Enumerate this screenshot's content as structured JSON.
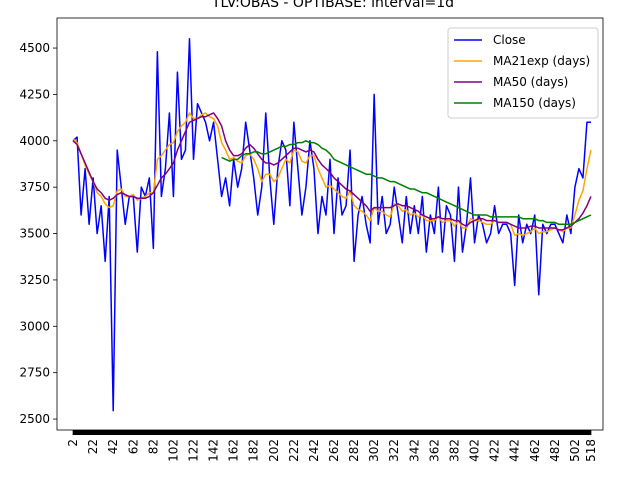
{
  "chart_data": {
    "type": "line",
    "title": "TLV:OBAS - OPTIBASE: interval=1d",
    "x": [
      2,
      6,
      10,
      14,
      18,
      22,
      26,
      30,
      34,
      38,
      42,
      46,
      50,
      54,
      58,
      62,
      66,
      70,
      74,
      78,
      82,
      86,
      90,
      94,
      98,
      102,
      106,
      110,
      114,
      118,
      122,
      126,
      130,
      134,
      138,
      142,
      146,
      150,
      154,
      158,
      162,
      166,
      170,
      174,
      178,
      182,
      186,
      190,
      194,
      198,
      202,
      206,
      210,
      214,
      218,
      222,
      226,
      230,
      234,
      238,
      242,
      246,
      250,
      254,
      258,
      262,
      266,
      270,
      274,
      278,
      282,
      286,
      290,
      294,
      298,
      302,
      306,
      310,
      314,
      318,
      322,
      326,
      330,
      334,
      338,
      342,
      346,
      350,
      354,
      358,
      362,
      366,
      370,
      374,
      378,
      382,
      386,
      390,
      394,
      398,
      402,
      406,
      410,
      414,
      418,
      422,
      426,
      430,
      434,
      438,
      442,
      446,
      450,
      454,
      458,
      462,
      466,
      470,
      474,
      478,
      482,
      486,
      490,
      494,
      498,
      502,
      506,
      510,
      514,
      518
    ],
    "series": [
      {
        "name": "Close",
        "color": "#0000ff",
        "values": [
          4000,
          4020,
          3600,
          3850,
          3550,
          3800,
          3500,
          3650,
          3350,
          3700,
          2545,
          3950,
          3750,
          3550,
          3700,
          3700,
          3400,
          3750,
          3700,
          3800,
          3420,
          4480,
          3700,
          3850,
          4150,
          3700,
          4370,
          3900,
          3950,
          4550,
          3900,
          4200,
          4150,
          4100,
          4000,
          4100,
          3900,
          3700,
          3800,
          3650,
          3900,
          3750,
          3850,
          4100,
          3950,
          3800,
          3600,
          3750,
          4150,
          3800,
          3550,
          3850,
          4000,
          3950,
          3650,
          4100,
          3850,
          3600,
          3750,
          4000,
          3850,
          3500,
          3700,
          3600,
          3900,
          3500,
          3800,
          3600,
          3650,
          3950,
          3350,
          3600,
          3700,
          3550,
          3450,
          4250,
          3550,
          3700,
          3500,
          3550,
          3750,
          3600,
          3450,
          3700,
          3500,
          3650,
          3500,
          3700,
          3400,
          3600,
          3500,
          3750,
          3400,
          3650,
          3600,
          3350,
          3750,
          3400,
          3550,
          3800,
          3450,
          3600,
          3550,
          3450,
          3500,
          3650,
          3500,
          3550,
          3550,
          3500,
          3220,
          3600,
          3450,
          3550,
          3500,
          3600,
          3170,
          3550,
          3500,
          3550,
          3550,
          3500,
          3450,
          3600,
          3500,
          3750,
          3850,
          3800,
          4100,
          4100
        ]
      },
      {
        "name": "MA21exp (days)",
        "color": "#ffa500",
        "values": [
          4010,
          3990,
          3930,
          3870,
          3820,
          3780,
          3720,
          3700,
          3660,
          3640,
          3650,
          3730,
          3740,
          3700,
          3700,
          3710,
          3680,
          3690,
          3700,
          3720,
          3720,
          3900,
          3920,
          3950,
          3980,
          3990,
          4050,
          4080,
          4100,
          4150,
          4120,
          4120,
          4140,
          4150,
          4130,
          4120,
          4080,
          3990,
          3950,
          3900,
          3910,
          3890,
          3880,
          3920,
          3930,
          3900,
          3850,
          3780,
          3820,
          3820,
          3780,
          3800,
          3850,
          3900,
          3880,
          3950,
          3940,
          3890,
          3880,
          3920,
          3920,
          3850,
          3800,
          3750,
          3760,
          3740,
          3720,
          3700,
          3690,
          3730,
          3650,
          3630,
          3620,
          3600,
          3570,
          3640,
          3620,
          3620,
          3600,
          3590,
          3660,
          3650,
          3620,
          3630,
          3600,
          3610,
          3590,
          3600,
          3570,
          3570,
          3570,
          3590,
          3560,
          3570,
          3570,
          3540,
          3570,
          3530,
          3530,
          3580,
          3570,
          3570,
          3560,
          3550,
          3550,
          3570,
          3560,
          3560,
          3560,
          3550,
          3490,
          3500,
          3490,
          3500,
          3510,
          3530,
          3500,
          3510,
          3510,
          3520,
          3530,
          3520,
          3510,
          3530,
          3530,
          3600,
          3680,
          3730,
          3850,
          3950
        ]
      },
      {
        "name": "MA50 (days)",
        "color": "#800080",
        "values": [
          4000,
          3980,
          3930,
          3880,
          3830,
          3780,
          3740,
          3720,
          3690,
          3680,
          3690,
          3710,
          3720,
          3710,
          3700,
          3700,
          3690,
          3690,
          3690,
          3700,
          3720,
          3760,
          3800,
          3820,
          3850,
          3880,
          3950,
          4000,
          4050,
          4100,
          4110,
          4120,
          4130,
          4130,
          4140,
          4150,
          4120,
          4080,
          4000,
          3950,
          3920,
          3920,
          3930,
          3960,
          3980,
          3960,
          3930,
          3900,
          3880,
          3880,
          3870,
          3880,
          3900,
          3920,
          3940,
          3960,
          3960,
          3950,
          3940,
          3950,
          3940,
          3900,
          3870,
          3850,
          3830,
          3800,
          3780,
          3760,
          3740,
          3730,
          3710,
          3690,
          3670,
          3650,
          3620,
          3640,
          3640,
          3640,
          3640,
          3640,
          3650,
          3660,
          3650,
          3650,
          3640,
          3630,
          3620,
          3600,
          3590,
          3580,
          3580,
          3590,
          3580,
          3580,
          3580,
          3570,
          3570,
          3550,
          3540,
          3560,
          3570,
          3580,
          3580,
          3570,
          3570,
          3570,
          3560,
          3560,
          3560,
          3550,
          3540,
          3530,
          3530,
          3530,
          3540,
          3540,
          3530,
          3530,
          3530,
          3530,
          3530,
          3520,
          3520,
          3530,
          3540,
          3560,
          3580,
          3610,
          3650,
          3700
        ]
      },
      {
        "name": "MA150 (days)",
        "color": "#008000",
        "values": [
          null,
          null,
          null,
          null,
          null,
          null,
          null,
          null,
          null,
          null,
          null,
          null,
          null,
          null,
          null,
          null,
          null,
          null,
          null,
          null,
          null,
          null,
          null,
          null,
          null,
          null,
          null,
          null,
          null,
          null,
          null,
          null,
          null,
          null,
          null,
          null,
          null,
          3910,
          3900,
          3890,
          3900,
          3900,
          3920,
          3930,
          3930,
          3940,
          3940,
          3930,
          3930,
          3940,
          3950,
          3960,
          3970,
          3970,
          3980,
          3980,
          3990,
          3990,
          4000,
          3990,
          3990,
          3980,
          3960,
          3950,
          3930,
          3900,
          3890,
          3880,
          3870,
          3860,
          3850,
          3840,
          3830,
          3820,
          3820,
          3810,
          3800,
          3800,
          3790,
          3780,
          3780,
          3770,
          3760,
          3750,
          3740,
          3740,
          3730,
          3720,
          3720,
          3710,
          3700,
          3690,
          3680,
          3670,
          3660,
          3650,
          3640,
          3630,
          3620,
          3610,
          3600,
          3600,
          3600,
          3600,
          3590,
          3590,
          3590,
          3590,
          3590,
          3590,
          3590,
          3590,
          3580,
          3580,
          3580,
          3580,
          3570,
          3570,
          3560,
          3560,
          3560,
          3550,
          3550,
          3550,
          3550,
          3560,
          3570,
          3580,
          3590,
          3600
        ]
      }
    ],
    "xlim": [
      -14,
      530
    ],
    "xticks": [
      2,
      22,
      42,
      62,
      82,
      102,
      122,
      142,
      162,
      182,
      202,
      222,
      242,
      262,
      282,
      302,
      322,
      342,
      362,
      382,
      402,
      422,
      442,
      462,
      482,
      502,
      518
    ],
    "ylim": [
      2441,
      4662
    ],
    "yticks": [
      2500,
      2750,
      3000,
      3250,
      3500,
      3750,
      4000,
      4250,
      4500
    ],
    "legend": "upper right"
  }
}
